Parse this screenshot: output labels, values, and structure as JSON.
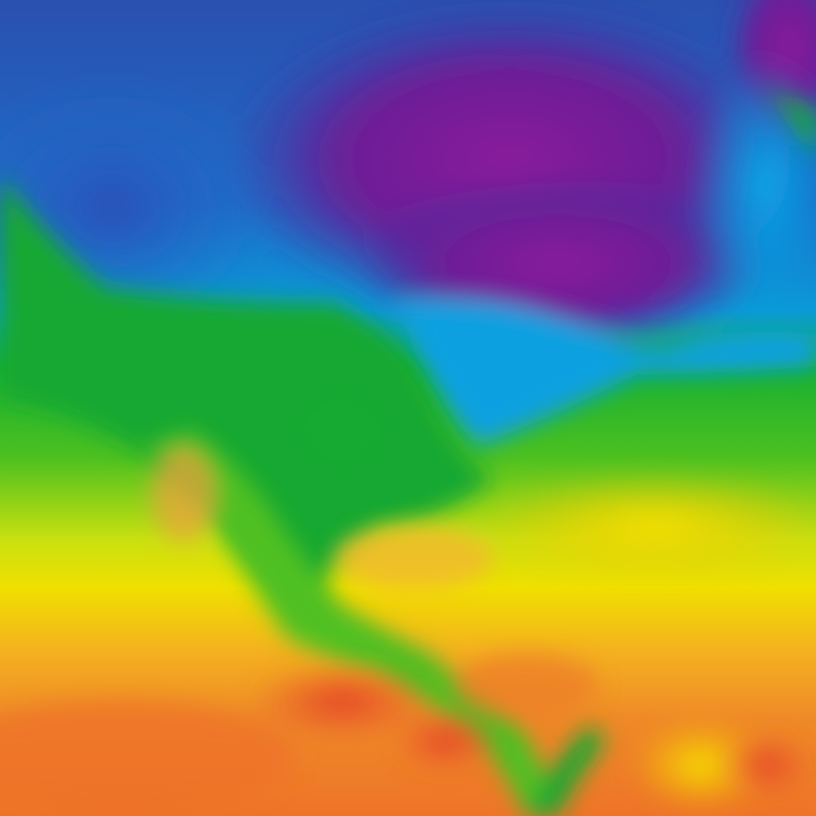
{
  "map": {
    "colors": {
      "very_cold": "#8a1a9a",
      "cold_deep": "#3a2a9a",
      "cold": "#1f5fc0",
      "cool": "#0aa0e0",
      "mild": "#18b030",
      "mild_light": "#7cc828",
      "warm": "#f0e800",
      "warmer": "#f4b020",
      "hot": "#ef7a28",
      "very_hot": "#e4402a"
    }
  }
}
